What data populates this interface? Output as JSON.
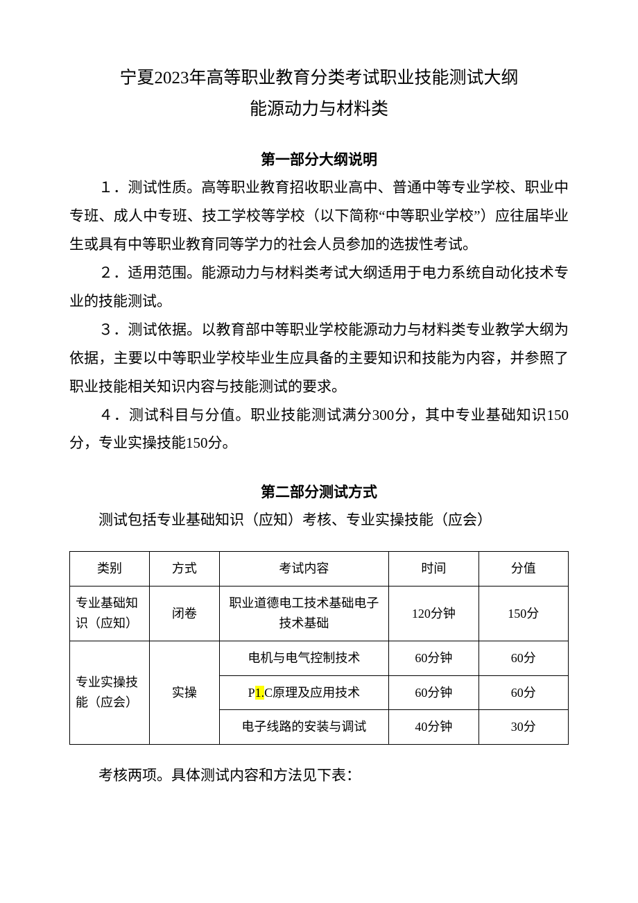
{
  "title": {
    "line1": "宁夏2023年高等职业教育分类考试职业技能测试大纲",
    "line2": "能源动力与材料类"
  },
  "section1": {
    "heading": "第一部分大纲说明",
    "p1": "１．测试性质。高等职业教育招收职业高中、普通中等专业学校、职业中专班、成人中专班、技工学校等学校（以下简称“中等职业学校”）应往届毕业生或具有中等职业教育同等学力的社会人员参加的选拔性考试。",
    "p2": "２．适用范围。能源动力与材料类考试大纲适用于电力系统自动化技术专业的技能测试。",
    "p3": "３．测试依据。以教育部中等职业学校能源动力与材料类专业教学大纲为依据，主要以中等职业学校毕业生应具备的主要知识和技能为内容，并参照了职业技能相关知识内容与技能测试的要求。",
    "p4": "４．测试科目与分值。职业技能测试满分300分，其中专业基础知识150分，专业实操技能150分。"
  },
  "section2": {
    "heading": "第二部分测试方式",
    "intro": "测试包括专业基础知识（应知）考核、专业实操技能（应会）",
    "after_table": "考核两项。具体测试内容和方法见下表："
  },
  "table": {
    "headers": {
      "category": "类别",
      "mode": "方式",
      "content": "考试内容",
      "time": "时间",
      "score": "分值"
    },
    "row1": {
      "category": "专业基础知识（应知）",
      "mode": "闭卷",
      "content": "职业道德电工技术基础电子技术基础",
      "time": "120分钟",
      "score": "150分"
    },
    "row2_group": {
      "category": "专业实操技能（应会）",
      "mode": "实操"
    },
    "row2a": {
      "content": "电机与电气控制技术",
      "time": "60分钟",
      "score": "60分"
    },
    "row2b": {
      "content_pre": "P",
      "content_hl": "1.",
      "content_post": "C原理及应用技术",
      "time": "60分钟",
      "score": "60分"
    },
    "row2c": {
      "content": "电子线路的安装与调试",
      "time": "40分钟",
      "score": "30分"
    }
  },
  "colors": {
    "text": "#000000",
    "background": "#ffffff",
    "border": "#000000",
    "highlight": "#ffff00"
  }
}
